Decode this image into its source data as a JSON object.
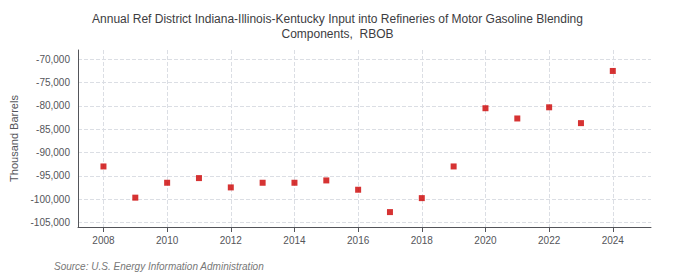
{
  "chart_data": {
    "type": "scatter",
    "title": "Annual Ref District Indiana-Illinois-Kentucky Input into Refineries of Motor Gasoline Blending\nComponents,  RBOB",
    "ylabel": "Thousand Barrels",
    "annotations": [
      "Source: U.S. Energy Information Administration"
    ],
    "x": [
      2008,
      2009,
      2010,
      2011,
      2012,
      2013,
      2014,
      2015,
      2016,
      2017,
      2018,
      2019,
      2020,
      2021,
      2022,
      2023,
      2024
    ],
    "values": [
      -93000,
      -99700,
      -96500,
      -95500,
      -97500,
      -96500,
      -96500,
      -96000,
      -98000,
      -102800,
      -99800,
      -93000,
      -80500,
      -82700,
      -80300,
      -83700,
      -72500
    ],
    "color": "#cc0000",
    "marker": "square",
    "xlim": [
      2007.2,
      2025.2
    ],
    "xticks": [
      2008,
      2010,
      2012,
      2014,
      2016,
      2018,
      2020,
      2022,
      2024
    ],
    "ylim": [
      -106000,
      -68000
    ],
    "yticks": [
      {
        "value": -105000,
        "label": "-105,000"
      },
      {
        "value": -100000,
        "label": "-100,000"
      },
      {
        "value": -95000,
        "label": "-95,000"
      },
      {
        "value": -90000,
        "label": "-90,000"
      },
      {
        "value": -85000,
        "label": "-85,000"
      },
      {
        "value": -80000,
        "label": "-80,000"
      },
      {
        "value": -75000,
        "label": "-75,000"
      },
      {
        "value": -70000,
        "label": "-70,000"
      }
    ],
    "grid": true
  }
}
